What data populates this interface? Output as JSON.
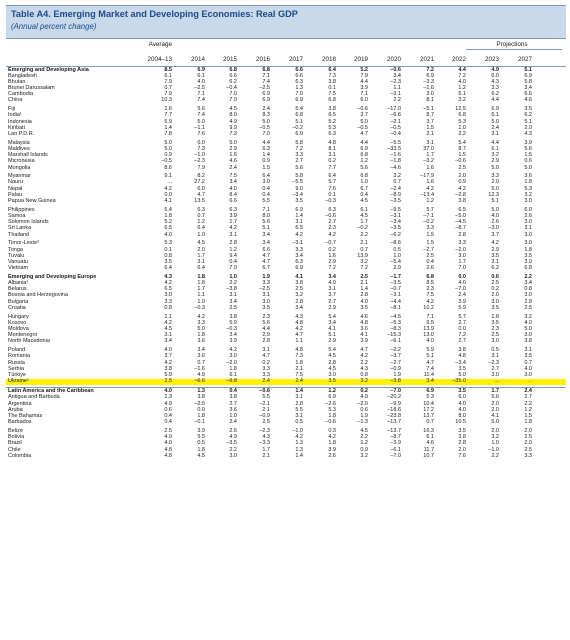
{
  "title": "Table A4. Emerging Market and Developing Economies: Real GDP",
  "subtitle": "(Annual percent change)",
  "columns": {
    "average_label": "Average",
    "average_years": "2004–13",
    "years": [
      "2014",
      "2015",
      "2016",
      "2017",
      "2018",
      "2019",
      "2020",
      "2021",
      "2022",
      "2023",
      "2027"
    ],
    "projections_label": "Projections"
  },
  "groups": [
    {
      "rows": [
        {
          "name": "Emerging and Developing Asia",
          "bold": true,
          "values": [
            "8.5",
            "6.9",
            "6.8",
            "6.8",
            "6.6",
            "6.4",
            "5.2",
            "–0.6",
            "7.2",
            "4.4",
            "4.9",
            "5.1"
          ]
        },
        {
          "name": "Bangladesh",
          "values": [
            "6.1",
            "6.1",
            "6.6",
            "7.1",
            "6.6",
            "7.3",
            "7.9",
            "3.4",
            "6.9",
            "7.2",
            "6.0",
            "6.9"
          ]
        },
        {
          "name": "Bhutan",
          "values": [
            "7.9",
            "4.0",
            "6.2",
            "7.4",
            "6.3",
            "3.8",
            "4.4",
            "–2.3",
            "–3.3",
            "4.0",
            "4.3",
            "5.8"
          ]
        },
        {
          "name": "Brunei Darussalam",
          "values": [
            "0.7",
            "–2.5",
            "–0.4",
            "–2.5",
            "1.3",
            "0.1",
            "3.9",
            "1.1",
            "–1.6",
            "1.2",
            "3.3",
            "3.4"
          ]
        },
        {
          "name": "Cambodia",
          "values": [
            "7.9",
            "7.1",
            "7.0",
            "6.9",
            "7.0",
            "7.5",
            "7.1",
            "–3.1",
            "3.0",
            "5.1",
            "6.2",
            "6.6"
          ]
        },
        {
          "name": "China",
          "values": [
            "10.3",
            "7.4",
            "7.0",
            "6.9",
            "6.9",
            "6.8",
            "6.0",
            "2.2",
            "8.1",
            "3.2",
            "4.4",
            "4.6"
          ]
        }
      ]
    },
    {
      "rows": [
        {
          "name": "Fiji",
          "values": [
            "1.6",
            "5.6",
            "4.5",
            "2.4",
            "5.4",
            "3.8",
            "–0.6",
            "–17.0",
            "–5.1",
            "12.5",
            "6.9",
            "3.5"
          ]
        },
        {
          "name": "India¹",
          "values": [
            "7.7",
            "7.4",
            "8.0",
            "8.3",
            "6.8",
            "6.5",
            "3.7",
            "–6.6",
            "8.7",
            "6.8",
            "6.1",
            "6.2"
          ]
        },
        {
          "name": "Indonesia",
          "values": [
            "5.9",
            "5.0",
            "4.9",
            "5.0",
            "5.1",
            "5.2",
            "5.0",
            "–2.1",
            "3.7",
            "5.3",
            "5.0",
            "5.1"
          ]
        },
        {
          "name": "Kiribati",
          "values": [
            "1.4",
            "–1.1",
            "9.9",
            "–0.5",
            "–0.2",
            "5.3",
            "–0.5",
            "–0.5",
            "1.5",
            "1.0",
            "2.4",
            "2.0"
          ]
        },
        {
          "name": "Lao P.D.R.",
          "values": [
            "7.8",
            "7.6",
            "7.3",
            "7.0",
            "6.9",
            "6.3",
            "4.7",
            "–0.4",
            "2.1",
            "2.2",
            "3.1",
            "4.3"
          ]
        }
      ]
    },
    {
      "rows": [
        {
          "name": "Malaysia",
          "values": [
            "5.0",
            "6.0",
            "5.0",
            "4.4",
            "5.8",
            "4.8",
            "4.4",
            "–5.5",
            "3.1",
            "5.4",
            "4.4",
            "3.9"
          ]
        },
        {
          "name": "Maldives",
          "values": [
            "5.0",
            "7.3",
            "2.9",
            "6.3",
            "7.2",
            "8.1",
            "6.9",
            "–33.5",
            "37.0",
            "8.7",
            "6.1",
            "5.6"
          ]
        },
        {
          "name": "Marshall Islands",
          "values": [
            "0.9",
            "–1.0",
            "1.6",
            "1.4",
            "3.3",
            "3.1",
            "6.8",
            "–1.6",
            "1.7",
            "1.5",
            "3.2",
            "1.5"
          ]
        },
        {
          "name": "Micronesia",
          "values": [
            "–0.5",
            "–2.3",
            "4.6",
            "0.9",
            "2.7",
            "0.2",
            "1.2",
            "–1.8",
            "–3.2",
            "–0.6",
            "2.9",
            "0.6"
          ]
        },
        {
          "name": "Mongolia",
          "values": [
            "8.6",
            "7.9",
            "2.4",
            "1.5",
            "5.6",
            "7.7",
            "5.6",
            "–4.6",
            "1.6",
            "2.5",
            "5.0",
            "5.0"
          ]
        }
      ]
    },
    {
      "rows": [
        {
          "name": "Myanmar",
          "values": [
            "9.1",
            "8.2",
            "7.5",
            "6.4",
            "5.8",
            "6.4",
            "6.8",
            "3.2",
            "–17.9",
            "2.0",
            "3.3",
            "3.6"
          ]
        },
        {
          "name": "Nauru",
          "values": [
            "...",
            "27.2",
            "3.4",
            "3.0",
            "–5.5",
            "5.7",
            "1.0",
            "0.7",
            "1.6",
            "0.9",
            "2.0",
            "1.8"
          ]
        },
        {
          "name": "Nepal",
          "values": [
            "4.2",
            "6.0",
            "4.0",
            "0.4",
            "9.0",
            "7.6",
            "6.7",
            "–2.4",
            "4.2",
            "4.2",
            "5.0",
            "5.3"
          ]
        },
        {
          "name": "Palau",
          "values": [
            "0.0",
            "4.7",
            "8.4",
            "0.4",
            "–3.4",
            "0.1",
            "0.4",
            "–8.9",
            "–13.4",
            "–2.8",
            "12.3",
            "3.2"
          ]
        },
        {
          "name": "Papua New Guinea",
          "values": [
            "4.1",
            "13.5",
            "6.6",
            "5.5",
            "3.5",
            "–0.3",
            "4.5",
            "–3.5",
            "1.2",
            "3.8",
            "5.1",
            "3.0"
          ]
        }
      ]
    },
    {
      "rows": [
        {
          "name": "Philippines",
          "values": [
            "5.4",
            "6.3",
            "6.3",
            "7.1",
            "6.9",
            "6.3",
            "6.1",
            "–9.5",
            "5.7",
            "6.5",
            "5.0",
            "6.0"
          ]
        },
        {
          "name": "Samoa",
          "values": [
            "1.8",
            "0.7",
            "3.9",
            "8.0",
            "1.4",
            "–0.6",
            "4.5",
            "–3.1",
            "–7.1",
            "–5.0",
            "4.0",
            "2.6"
          ]
        },
        {
          "name": "Solomon Islands",
          "values": [
            "5.2",
            "1.2",
            "1.7",
            "5.6",
            "3.1",
            "2.7",
            "1.7",
            "–3.4",
            "–0.2",
            "–4.5",
            "2.6",
            "3.0"
          ]
        },
        {
          "name": "Sri Lanka",
          "values": [
            "6.5",
            "6.4",
            "4.2",
            "5.1",
            "6.5",
            "2.3",
            "–0.2",
            "–3.5",
            "3.3",
            "–8.7",
            "–3.0",
            "3.1"
          ]
        },
        {
          "name": "Thailand",
          "values": [
            "4.0",
            "1.0",
            "3.1",
            "3.4",
            "4.2",
            "4.2",
            "2.2",
            "–6.2",
            "1.5",
            "2.8",
            "3.7",
            "3.0"
          ]
        }
      ]
    },
    {
      "rows": [
        {
          "name": "Timor-Leste²",
          "values": [
            "5.3",
            "4.5",
            "2.8",
            "3.4",
            "–3.1",
            "–0.7",
            "2.1",
            "–8.6",
            "1.5",
            "3.3",
            "4.2",
            "3.0"
          ]
        },
        {
          "name": "Tonga",
          "values": [
            "0.1",
            "2.0",
            "1.2",
            "6.6",
            "3.3",
            "0.2",
            "0.7",
            "0.5",
            "–2.7",
            "–2.0",
            "2.9",
            "1.8"
          ]
        },
        {
          "name": "Tuvalu",
          "values": [
            "0.8",
            "1.7",
            "9.4",
            "4.7",
            "3.4",
            "1.6",
            "13.9",
            "1.0",
            "2.5",
            "3.0",
            "3.5",
            "3.5"
          ]
        },
        {
          "name": "Vanuatu",
          "values": [
            "3.5",
            "3.1",
            "0.4",
            "4.7",
            "6.3",
            "2.9",
            "3.2",
            "–5.4",
            "0.4",
            "1.7",
            "3.1",
            "3.0"
          ]
        },
        {
          "name": "Vietnam",
          "values": [
            "6.4",
            "6.4",
            "7.0",
            "6.7",
            "6.9",
            "7.2",
            "7.2",
            "2.9",
            "2.6",
            "7.0",
            "6.2",
            "6.8"
          ]
        }
      ]
    },
    {
      "rows": [
        {
          "name": "Emerging and Developing Europe",
          "bold": true,
          "values": [
            "4.3",
            "1.8",
            "1.0",
            "1.9",
            "4.1",
            "3.4",
            "2.5",
            "–1.7",
            "6.8",
            "0.0",
            "0.6",
            "2.2"
          ]
        },
        {
          "name": "Albania¹",
          "values": [
            "4.2",
            "1.8",
            "2.2",
            "3.3",
            "3.8",
            "4.0",
            "2.1",
            "–3.5",
            "8.5",
            "4.0",
            "2.5",
            "3.4"
          ]
        },
        {
          "name": "Belarus",
          "values": [
            "6.5",
            "1.7",
            "–3.8",
            "–2.5",
            "2.5",
            "3.1",
            "1.4",
            "–0.7",
            "2.3",
            "–7.0",
            "0.2",
            "0.8"
          ]
        },
        {
          "name": "Bosnia and Herzegovina",
          "values": [
            "3.0",
            "1.1",
            "3.1",
            "3.1",
            "3.2",
            "3.7",
            "2.8",
            "–3.1",
            "7.5",
            "2.4",
            "2.0",
            "3.0"
          ]
        },
        {
          "name": "Bulgaria",
          "values": [
            "3.3",
            "1.0",
            "3.4",
            "3.0",
            "2.8",
            "2.7",
            "4.0",
            "–4.4",
            "4.2",
            "3.9",
            "3.0",
            "2.8"
          ]
        },
        {
          "name": "Croatia",
          "values": [
            "0.8",
            "–0.3",
            "2.5",
            "3.5",
            "3.4",
            "2.9",
            "3.5",
            "–8.1",
            "10.2",
            "5.9",
            "3.5",
            "2.5"
          ]
        }
      ]
    },
    {
      "rows": [
        {
          "name": "Hungary",
          "values": [
            "1.1",
            "4.2",
            "3.8",
            "2.3",
            "4.3",
            "5.4",
            "4.6",
            "–4.5",
            "7.1",
            "5.7",
            "1.8",
            "3.2"
          ]
        },
        {
          "name": "Kosovo",
          "values": [
            "4.2",
            "3.3",
            "5.9",
            "5.6",
            "4.8",
            "3.4",
            "4.8",
            "–5.3",
            "9.5",
            "2.7",
            "3.5",
            "4.0"
          ]
        },
        {
          "name": "Moldova",
          "values": [
            "4.5",
            "5.0",
            "–0.3",
            "4.4",
            "4.2",
            "4.1",
            "3.6",
            "–8.3",
            "13.9",
            "0.0",
            "2.3",
            "5.0"
          ]
        },
        {
          "name": "Montenegro",
          "values": [
            "3.1",
            "1.8",
            "3.4",
            "2.9",
            "4.7",
            "5.1",
            "4.1",
            "–15.3",
            "13.0",
            "7.2",
            "2.5",
            "3.0"
          ]
        },
        {
          "name": "North Macedonia",
          "values": [
            "3.4",
            "3.6",
            "3.9",
            "2.8",
            "1.1",
            "2.9",
            "3.9",
            "–6.1",
            "4.0",
            "2.7",
            "3.0",
            "3.8"
          ]
        }
      ]
    },
    {
      "rows": [
        {
          "name": "Poland",
          "values": [
            "4.0",
            "3.4",
            "4.2",
            "3.1",
            "4.8",
            "5.4",
            "4.7",
            "–2.2",
            "5.9",
            "3.8",
            "0.5",
            "3.1"
          ]
        },
        {
          "name": "Romania",
          "values": [
            "3.7",
            "3.6",
            "3.0",
            "4.7",
            "7.3",
            "4.5",
            "4.2",
            "–3.7",
            "5.1",
            "4.8",
            "3.1",
            "3.5"
          ]
        },
        {
          "name": "Russia",
          "values": [
            "4.2",
            "0.7",
            "–2.0",
            "0.2",
            "1.8",
            "2.8",
            "2.2",
            "–2.7",
            "4.7",
            "–3.4",
            "–2.3",
            "0.7"
          ]
        },
        {
          "name": "Serbia",
          "values": [
            "3.8",
            "–1.6",
            "1.8",
            "3.3",
            "2.1",
            "4.5",
            "4.3",
            "–0.9",
            "7.4",
            "3.5",
            "2.7",
            "4.0"
          ]
        },
        {
          "name": "Türkiye",
          "values": [
            "5.9",
            "4.9",
            "6.1",
            "3.3",
            "7.5",
            "3.0",
            "0.8",
            "1.9",
            "11.4",
            "5.0",
            "3.0",
            "3.0"
          ]
        },
        {
          "name": "Ukraine¹",
          "highlight": true,
          "values": [
            "2.5",
            "–6.6",
            "–9.8",
            "2.4",
            "2.4",
            "3.5",
            "3.2",
            "–3.8",
            "3.4",
            "–35.0",
            "...",
            "..."
          ]
        }
      ]
    },
    {
      "divider": true,
      "rows": [
        {
          "name": "Latin America and the Caribbean",
          "bold": true,
          "values": [
            "4.0",
            "1.3",
            "0.4",
            "–0.6",
            "1.4",
            "1.2",
            "0.2",
            "–7.0",
            "6.9",
            "3.5",
            "1.7",
            "2.4"
          ]
        },
        {
          "name": "Antigua and Barbuda",
          "values": [
            "1.3",
            "3.8",
            "3.8",
            "5.5",
            "3.1",
            "6.9",
            "4.9",
            "–20.2",
            "5.3",
            "6.0",
            "5.6",
            "2.7"
          ]
        },
        {
          "name": "Argentina",
          "values": [
            "4.9",
            "–2.5",
            "2.7",
            "–2.1",
            "2.8",
            "–2.6",
            "–2.0",
            "–9.9",
            "10.4",
            "4.0",
            "2.0",
            "2.2"
          ]
        },
        {
          "name": "Aruba",
          "values": [
            "0.6",
            "0.0",
            "3.6",
            "2.1",
            "5.5",
            "5.3",
            "0.6",
            "–18.6",
            "17.2",
            "4.0",
            "2.0",
            "1.2"
          ]
        },
        {
          "name": "The Bahamas",
          "values": [
            "0.4",
            "1.8",
            "1.0",
            "–0.9",
            "3.1",
            "1.8",
            "1.9",
            "–23.8",
            "13.7",
            "8.0",
            "4.1",
            "1.5"
          ]
        },
        {
          "name": "Barbados",
          "values": [
            "0.4",
            "–0.1",
            "2.4",
            "2.5",
            "0.5",
            "–0.6",
            "–1.3",
            "–13.7",
            "0.7",
            "10.5",
            "5.0",
            "1.8"
          ]
        }
      ]
    },
    {
      "rows": [
        {
          "name": "Belize",
          "values": [
            "2.5",
            "3.9",
            "2.6",
            "–2.3",
            "–1.0",
            "0.3",
            "4.5",
            "–13.7",
            "16.3",
            "3.5",
            "2.0",
            "2.0"
          ]
        },
        {
          "name": "Bolivia",
          "values": [
            "4.9",
            "5.5",
            "4.9",
            "4.3",
            "4.2",
            "4.2",
            "2.2",
            "–8.7",
            "6.1",
            "3.8",
            "3.2",
            "2.5"
          ]
        },
        {
          "name": "Brazil",
          "values": [
            "4.0",
            "0.5",
            "–3.5",
            "–3.3",
            "1.3",
            "1.8",
            "1.2",
            "–3.9",
            "4.6",
            "2.8",
            "1.0",
            "2.0"
          ]
        },
        {
          "name": "Chile",
          "values": [
            "4.8",
            "1.8",
            "2.2",
            "1.7",
            "1.3",
            "3.9",
            "0.9",
            "–6.1",
            "11.7",
            "2.0",
            "–1.0",
            "2.5"
          ]
        },
        {
          "name": "Colombia",
          "values": [
            "4.8",
            "4.5",
            "3.0",
            "2.1",
            "1.4",
            "2.6",
            "3.2",
            "–7.0",
            "10.7",
            "7.6",
            "2.2",
            "3.3"
          ]
        }
      ]
    }
  ]
}
